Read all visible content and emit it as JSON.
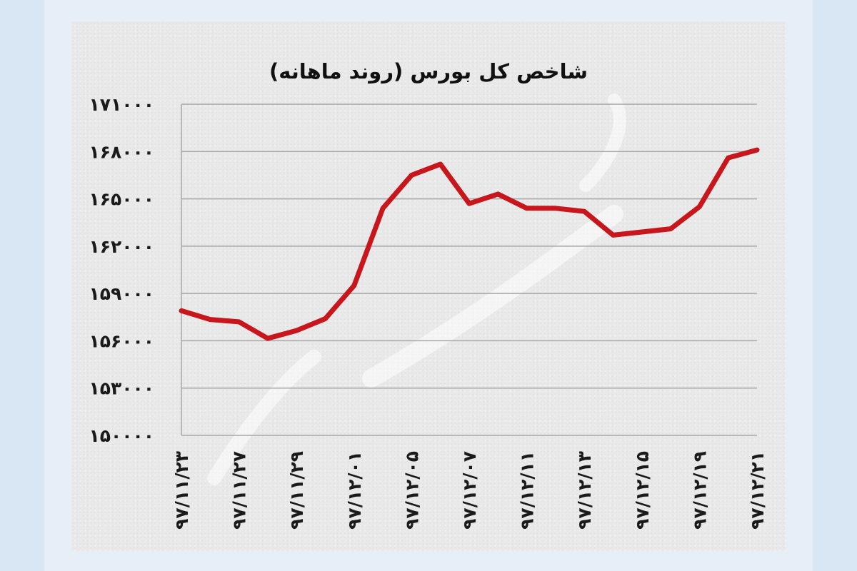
{
  "chart_data": {
    "type": "line",
    "title": "شاخص کل بورس (روند ماهانه)",
    "xlabel": "",
    "ylabel": "",
    "ylim": [
      150000,
      171000
    ],
    "yticks": [
      150000,
      153000,
      156000,
      159000,
      162000,
      165000,
      168000,
      171000
    ],
    "ytick_labels": [
      "۱۵۰۰۰۰",
      "۱۵۳۰۰۰",
      "۱۵۶۰۰۰",
      "۱۵۹۰۰۰",
      "۱۶۲۰۰۰",
      "۱۶۵۰۰۰",
      "۱۶۸۰۰۰",
      "۱۷۱۰۰۰"
    ],
    "x_tick_labels": [
      "۹۷/۱۱/۲۳",
      "۹۷/۱۱/۲۷",
      "۹۷/۱۱/۲۹",
      "۹۷/۱۲/۰۱",
      "۹۷/۱۲/۰۵",
      "۹۷/۱۲/۰۷",
      "۹۷/۱۲/۱۱",
      "۹۷/۱۲/۱۳",
      "۹۷/۱۲/۱۵",
      "۹۷/۱۲/۱۹",
      "۹۷/۱۲/۲۱"
    ],
    "grid": true,
    "series": [
      {
        "color": "#c8161d",
        "values": [
          157900,
          157350,
          157200,
          156150,
          156650,
          157400,
          159500,
          164400,
          166500,
          167200,
          164700,
          165300,
          164400,
          164400,
          164200,
          162700,
          162900,
          163100,
          164500,
          167600,
          168100
        ]
      }
    ]
  }
}
